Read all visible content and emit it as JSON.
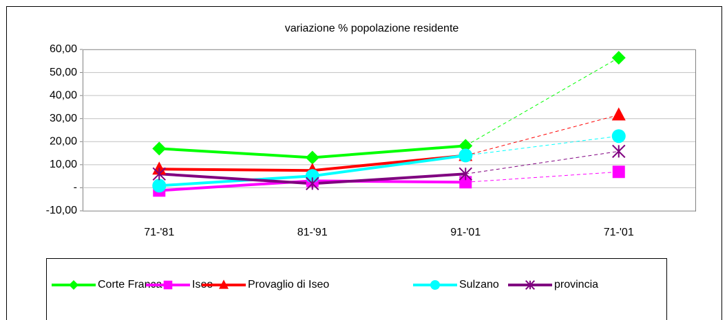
{
  "chart_data": {
    "type": "line",
    "title": "variazione % popolazione residente",
    "categories": [
      "71-'81",
      "81-'91",
      "91-'01",
      "71-'01"
    ],
    "series": [
      {
        "name": "Corte Franca",
        "color": "#00ff00",
        "marker": "diamond",
        "values": [
          17.0,
          13.1,
          18.2,
          56.4
        ]
      },
      {
        "name": "Iseo",
        "color": "#ff00ff",
        "marker": "square",
        "values": [
          -1.2,
          3.0,
          2.4,
          6.9
        ]
      },
      {
        "name": "Provaglio di Iseo",
        "color": "#ff0000",
        "marker": "triangle",
        "values": [
          8.1,
          7.5,
          14.0,
          31.6
        ]
      },
      {
        "name": "Sulzano",
        "color": "#00ffff",
        "marker": "circle",
        "values": [
          0.9,
          5.1,
          14.0,
          22.4
        ]
      },
      {
        "name": "provincia",
        "color": "#800080",
        "marker": "star",
        "values": [
          6.0,
          1.8,
          6.0,
          15.8
        ]
      }
    ],
    "ylim": [
      -10,
      60
    ],
    "yticks": [
      {
        "value": -10,
        "label": "-10,00"
      },
      {
        "value": 0,
        "label": "-"
      },
      {
        "value": 10,
        "label": "10,00"
      },
      {
        "value": 20,
        "label": "20,00"
      },
      {
        "value": 30,
        "label": "30,00"
      },
      {
        "value": 40,
        "label": "40,00"
      },
      {
        "value": 50,
        "label": "50,00"
      },
      {
        "value": 60,
        "label": "60,00"
      }
    ],
    "grid": true,
    "legend": "bottom"
  }
}
